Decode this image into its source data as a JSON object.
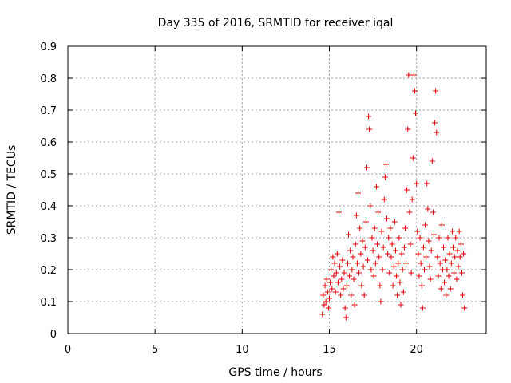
{
  "chart_data": {
    "type": "scatter",
    "title": "Day 335 of 2016, SRMTID for receiver iqal",
    "xlabel": "GPS time / hours",
    "ylabel": "SRMTID / TECUs",
    "xlim": [
      0,
      24
    ],
    "ylim": [
      0,
      0.9
    ],
    "xticks": [
      0,
      5,
      10,
      15,
      20
    ],
    "yticks": [
      0,
      0.1,
      0.2,
      0.3,
      0.4,
      0.5,
      0.6,
      0.7,
      0.8,
      0.9
    ],
    "xtick_labels": [
      "0",
      "5",
      "10",
      "15",
      "20"
    ],
    "ytick_labels": [
      "0",
      "0.1",
      "0.2",
      "0.3",
      "0.4",
      "0.5",
      "0.6",
      "0.7",
      "0.8",
      "0.9"
    ],
    "grid": true,
    "marker": "+",
    "color": "#e00000",
    "series": [
      {
        "name": "SRMTID",
        "points": [
          [
            14.6,
            0.06
          ],
          [
            14.65,
            0.12
          ],
          [
            14.7,
            0.09
          ],
          [
            14.75,
            0.15
          ],
          [
            14.8,
            0.1
          ],
          [
            14.85,
            0.17
          ],
          [
            14.9,
            0.13
          ],
          [
            14.95,
            0.08
          ],
          [
            15.0,
            0.11
          ],
          [
            15.05,
            0.16
          ],
          [
            15.1,
            0.2
          ],
          [
            15.15,
            0.14
          ],
          [
            15.2,
            0.24
          ],
          [
            15.25,
            0.18
          ],
          [
            15.3,
            0.22
          ],
          [
            15.35,
            0.13
          ],
          [
            15.4,
            0.19
          ],
          [
            15.45,
            0.25
          ],
          [
            15.5,
            0.16
          ],
          [
            15.55,
            0.38
          ],
          [
            15.6,
            0.21
          ],
          [
            15.65,
            0.12
          ],
          [
            15.7,
            0.17
          ],
          [
            15.75,
            0.23
          ],
          [
            15.8,
            0.14
          ],
          [
            15.85,
            0.19
          ],
          [
            15.9,
            0.08
          ],
          [
            15.95,
            0.05
          ],
          [
            16.0,
            0.15
          ],
          [
            16.05,
            0.22
          ],
          [
            16.1,
            0.31
          ],
          [
            16.15,
            0.18
          ],
          [
            16.2,
            0.26
          ],
          [
            16.25,
            0.12
          ],
          [
            16.3,
            0.2
          ],
          [
            16.35,
            0.24
          ],
          [
            16.4,
            0.17
          ],
          [
            16.45,
            0.09
          ],
          [
            16.5,
            0.28
          ],
          [
            16.55,
            0.37
          ],
          [
            16.6,
            0.22
          ],
          [
            16.65,
            0.44
          ],
          [
            16.7,
            0.19
          ],
          [
            16.75,
            0.33
          ],
          [
            16.8,
            0.25
          ],
          [
            16.85,
            0.15
          ],
          [
            16.9,
            0.29
          ],
          [
            16.95,
            0.21
          ],
          [
            17.0,
            0.12
          ],
          [
            17.05,
            0.27
          ],
          [
            17.1,
            0.35
          ],
          [
            17.15,
            0.52
          ],
          [
            17.2,
            0.23
          ],
          [
            17.25,
            0.68
          ],
          [
            17.3,
            0.64
          ],
          [
            17.35,
            0.4
          ],
          [
            17.4,
            0.2
          ],
          [
            17.45,
            0.3
          ],
          [
            17.5,
            0.26
          ],
          [
            17.55,
            0.18
          ],
          [
            17.6,
            0.33
          ],
          [
            17.65,
            0.22
          ],
          [
            17.7,
            0.46
          ],
          [
            17.75,
            0.28
          ],
          [
            17.8,
            0.38
          ],
          [
            17.85,
            0.24
          ],
          [
            17.9,
            0.15
          ],
          [
            17.95,
            0.1
          ],
          [
            18.0,
            0.32
          ],
          [
            18.05,
            0.2
          ],
          [
            18.1,
            0.27
          ],
          [
            18.15,
            0.42
          ],
          [
            18.2,
            0.49
          ],
          [
            18.25,
            0.53
          ],
          [
            18.3,
            0.36
          ],
          [
            18.35,
            0.25
          ],
          [
            18.4,
            0.3
          ],
          [
            18.45,
            0.19
          ],
          [
            18.5,
            0.33
          ],
          [
            18.55,
            0.24
          ],
          [
            18.6,
            0.28
          ],
          [
            18.65,
            0.15
          ],
          [
            18.7,
            0.21
          ],
          [
            18.75,
            0.35
          ],
          [
            18.8,
            0.26
          ],
          [
            18.85,
            0.18
          ],
          [
            18.9,
            0.12
          ],
          [
            18.95,
            0.22
          ],
          [
            19.0,
            0.3
          ],
          [
            19.05,
            0.16
          ],
          [
            19.1,
            0.09
          ],
          [
            19.15,
            0.25
          ],
          [
            19.2,
            0.2
          ],
          [
            19.25,
            0.13
          ],
          [
            19.3,
            0.27
          ],
          [
            19.35,
            0.33
          ],
          [
            19.4,
            0.22
          ],
          [
            19.45,
            0.45
          ],
          [
            19.5,
            0.64
          ],
          [
            19.55,
            0.81
          ],
          [
            19.6,
            0.38
          ],
          [
            19.65,
            0.28
          ],
          [
            19.7,
            0.19
          ],
          [
            19.75,
            0.42
          ],
          [
            19.8,
            0.55
          ],
          [
            19.85,
            0.81
          ],
          [
            19.9,
            0.76
          ],
          [
            19.95,
            0.69
          ],
          [
            20.0,
            0.47
          ],
          [
            20.05,
            0.32
          ],
          [
            20.1,
            0.25
          ],
          [
            20.15,
            0.18
          ],
          [
            20.2,
            0.3
          ],
          [
            20.25,
            0.22
          ],
          [
            20.3,
            0.15
          ],
          [
            20.35,
            0.08
          ],
          [
            20.4,
            0.27
          ],
          [
            20.45,
            0.2
          ],
          [
            20.5,
            0.34
          ],
          [
            20.55,
            0.24
          ],
          [
            20.6,
            0.47
          ],
          [
            20.65,
            0.39
          ],
          [
            20.7,
            0.29
          ],
          [
            20.75,
            0.21
          ],
          [
            20.8,
            0.17
          ],
          [
            20.85,
            0.26
          ],
          [
            20.9,
            0.54
          ],
          [
            20.95,
            0.38
          ],
          [
            21.0,
            0.31
          ],
          [
            21.05,
            0.66
          ],
          [
            21.1,
            0.76
          ],
          [
            21.15,
            0.63
          ],
          [
            21.2,
            0.24
          ],
          [
            21.25,
            0.18
          ],
          [
            21.3,
            0.3
          ],
          [
            21.35,
            0.22
          ],
          [
            21.4,
            0.14
          ],
          [
            21.45,
            0.34
          ],
          [
            21.5,
            0.2
          ],
          [
            21.55,
            0.27
          ],
          [
            21.6,
            0.16
          ],
          [
            21.65,
            0.23
          ],
          [
            21.7,
            0.12
          ],
          [
            21.75,
            0.2
          ],
          [
            21.8,
            0.3
          ],
          [
            21.85,
            0.18
          ],
          [
            21.9,
            0.25
          ],
          [
            21.95,
            0.14
          ],
          [
            22.0,
            0.22
          ],
          [
            22.05,
            0.32
          ],
          [
            22.1,
            0.27
          ],
          [
            22.15,
            0.19
          ],
          [
            22.2,
            0.24
          ],
          [
            22.25,
            0.3
          ],
          [
            22.3,
            0.17
          ],
          [
            22.35,
            0.26
          ],
          [
            22.4,
            0.21
          ],
          [
            22.45,
            0.32
          ],
          [
            22.5,
            0.24
          ],
          [
            22.55,
            0.28
          ],
          [
            22.6,
            0.19
          ],
          [
            22.65,
            0.12
          ],
          [
            22.7,
            0.25
          ],
          [
            22.75,
            0.08
          ]
        ]
      }
    ]
  }
}
